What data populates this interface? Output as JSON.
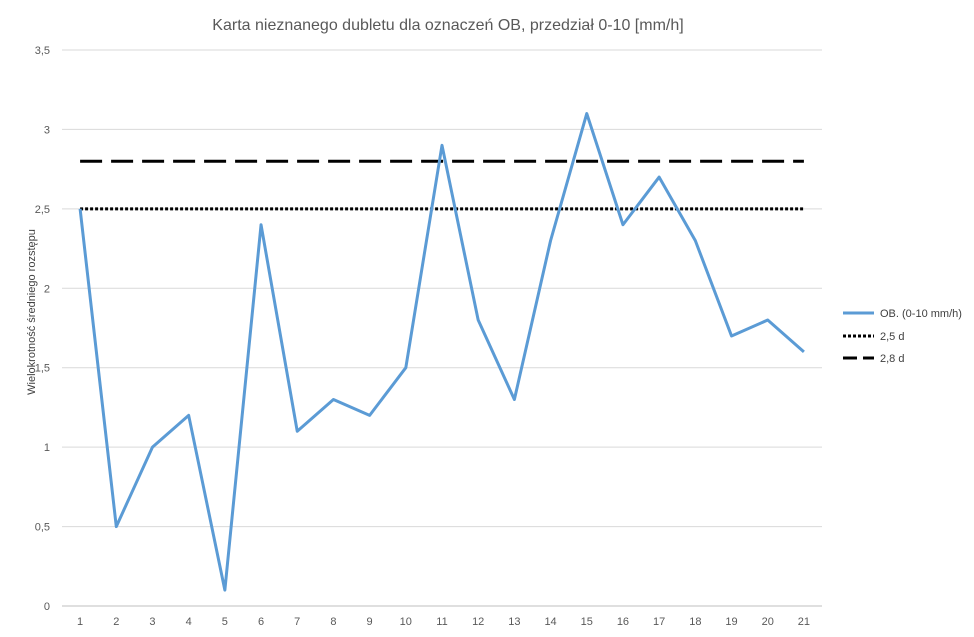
{
  "chart_data": {
    "type": "line",
    "title": "Karta nieznanego dubletu dla  oznaczeń OB, przedział 0-10 [mm/h]",
    "xlabel": "",
    "ylabel": "Wielokrotność średniego rozstępu",
    "categories": [
      "1",
      "2",
      "3",
      "4",
      "5",
      "6",
      "7",
      "8",
      "9",
      "10",
      "11",
      "12",
      "13",
      "14",
      "15",
      "16",
      "17",
      "18",
      "19",
      "20",
      "21"
    ],
    "ylim": [
      0,
      3.5
    ],
    "yticks": [
      0,
      0.5,
      1,
      1.5,
      2,
      2.5,
      3,
      3.5
    ],
    "ytick_labels": [
      "0",
      "0,5",
      "1",
      "1,5",
      "2",
      "2,5",
      "3",
      "3,5"
    ],
    "grid": true,
    "legend_position": "right",
    "series": [
      {
        "name": "OB. (0-10 mm/h)",
        "style": "solid",
        "color": "#5B9BD5",
        "values": [
          2.5,
          0.5,
          1.0,
          1.2,
          0.1,
          2.4,
          1.1,
          1.3,
          1.2,
          1.5,
          2.9,
          1.8,
          1.3,
          2.3,
          3.1,
          2.4,
          2.7,
          2.3,
          1.7,
          1.8,
          1.6
        ]
      },
      {
        "name": "2,5 d",
        "style": "dotted",
        "color": "#000000",
        "values": [
          2.5,
          2.5,
          2.5,
          2.5,
          2.5,
          2.5,
          2.5,
          2.5,
          2.5,
          2.5,
          2.5,
          2.5,
          2.5,
          2.5,
          2.5,
          2.5,
          2.5,
          2.5,
          2.5,
          2.5,
          2.5
        ]
      },
      {
        "name": "2,8 d",
        "style": "dashed",
        "color": "#000000",
        "values": [
          2.8,
          2.8,
          2.8,
          2.8,
          2.8,
          2.8,
          2.8,
          2.8,
          2.8,
          2.8,
          2.8,
          2.8,
          2.8,
          2.8,
          2.8,
          2.8,
          2.8,
          2.8,
          2.8,
          2.8,
          2.8
        ]
      }
    ]
  }
}
